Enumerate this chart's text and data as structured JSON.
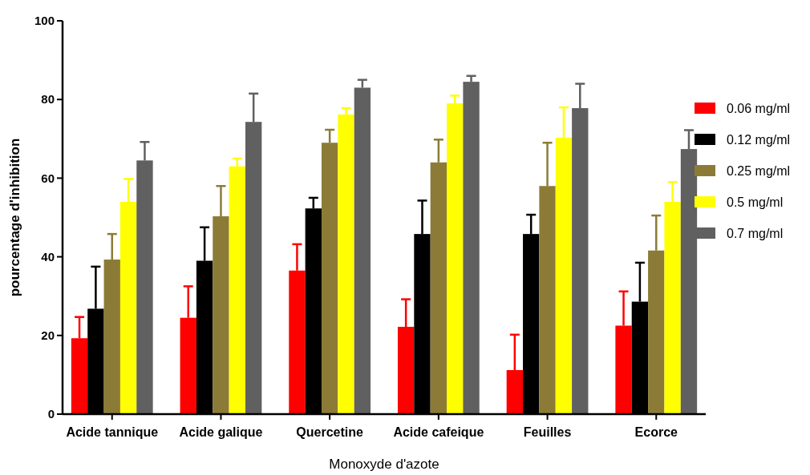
{
  "chart_data": {
    "type": "bar",
    "xlabel": "Monoxyde d'azote",
    "ylabel": "pourcentage d'inhibition",
    "categories": [
      "Acide tannique",
      "Acide galique",
      "Quercetine",
      "Acide cafeique",
      "Feuilles",
      "Ecorce"
    ],
    "series": [
      {
        "name": "0.06 mg/ml",
        "color": "#ff0000",
        "values": [
          19.3,
          24.5,
          36.5,
          22.2,
          11.2,
          22.5
        ],
        "errors": [
          [
            19.3,
            24.7
          ],
          [
            24.5,
            32.5
          ],
          [
            36.5,
            43.2
          ],
          [
            22.2,
            29.2
          ],
          [
            11.2,
            20.2
          ],
          [
            22.5,
            31.2
          ]
        ]
      },
      {
        "name": "0.12 mg/ml",
        "color": "#000000",
        "values": [
          26.8,
          39,
          52.3,
          45.8,
          45.8,
          28.6
        ],
        "errors": [
          [
            26.8,
            37.5
          ],
          [
            39,
            47.5
          ],
          [
            52.3,
            55
          ],
          [
            45.8,
            54.3
          ],
          [
            45.8,
            50.7
          ],
          [
            28.6,
            38.5
          ]
        ]
      },
      {
        "name": "0.25 mg/ml",
        "color": "#8b7b37",
        "values": [
          39.3,
          50.3,
          69,
          64,
          58,
          41.6
        ],
        "errors": [
          [
            39.3,
            45.8
          ],
          [
            50.3,
            58
          ],
          [
            69,
            72.3
          ],
          [
            64,
            69.8
          ],
          [
            58,
            69
          ],
          [
            41.6,
            50.5
          ]
        ]
      },
      {
        "name": "0.5 mg/ml",
        "color": "#ffff00",
        "values": [
          54,
          63,
          76.2,
          79,
          70.3,
          54
        ],
        "errors": [
          [
            54,
            59.8
          ],
          [
            63,
            65
          ],
          [
            76.2,
            77.8
          ],
          [
            79,
            81
          ],
          [
            70.3,
            78
          ],
          [
            54,
            59
          ]
        ]
      },
      {
        "name": "0.7 mg/ml",
        "color": "#606060",
        "values": [
          64.5,
          74.3,
          83,
          84.5,
          77.8,
          67.4
        ],
        "errors": [
          [
            64.5,
            69.2
          ],
          [
            74.3,
            81.5
          ],
          [
            83,
            85
          ],
          [
            84.5,
            86
          ],
          [
            77.8,
            84
          ],
          [
            67.4,
            72.2
          ]
        ]
      }
    ],
    "ylim": [
      0,
      100
    ],
    "yticks": [
      0,
      20,
      40,
      60,
      80,
      100
    ],
    "grid": false,
    "legend": "right"
  }
}
